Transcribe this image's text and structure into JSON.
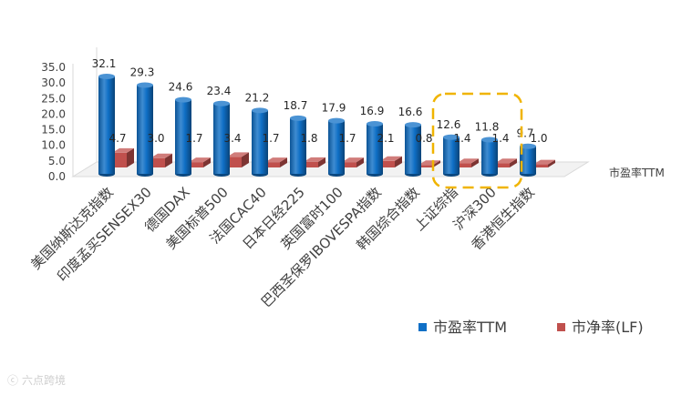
{
  "watermark": "六点跨境",
  "chart_data": {
    "type": "bar",
    "style": "3d-clustered-cylinder",
    "categories": [
      "美国纳斯达克指数",
      "印度孟买SENSEX30",
      "德国DAX",
      "美国标普500",
      "法国CAC40",
      "日本日经225",
      "英国富时100",
      "巴西圣保罗IBOVESPA指数",
      "韩国综合指数",
      "上证综指",
      "沪深300",
      "香港恒生指数"
    ],
    "series": [
      {
        "name": "市盈率TTM",
        "color": "#0f6fc6",
        "values": [
          32.1,
          29.3,
          24.6,
          23.4,
          21.2,
          18.7,
          17.9,
          16.9,
          16.6,
          12.6,
          11.8,
          9.7
        ],
        "labels": [
          "32.1",
          "29.3",
          "24.6",
          "23.4",
          "21.2",
          "18.7",
          "17.9",
          "16.9",
          "16.6",
          "12.6",
          "11.8",
          "9.7"
        ]
      },
      {
        "name": "市净率(LF)",
        "color": "#c0504d",
        "values": [
          4.7,
          3.0,
          1.7,
          3.4,
          1.7,
          1.8,
          1.7,
          2.1,
          0.8,
          1.4,
          1.4,
          1.0
        ],
        "labels": [
          "4.7",
          "3.0",
          "1.7",
          "3.4",
          "1.7",
          "1.8",
          "1.7",
          "2.1",
          "0.8",
          "1.4",
          "1.4",
          "1.0"
        ]
      }
    ],
    "ylim": [
      0,
      35
    ],
    "yticks": [
      "0.0",
      "5.0",
      "10.0",
      "15.0",
      "20.0",
      "25.0",
      "30.0",
      "35.0"
    ],
    "depth_axis_label": "市盈率TTM",
    "highlight_categories": [
      "上证综指",
      "沪深300"
    ],
    "highlight_color": "#f0b400",
    "legend_position": "bottom-right"
  }
}
